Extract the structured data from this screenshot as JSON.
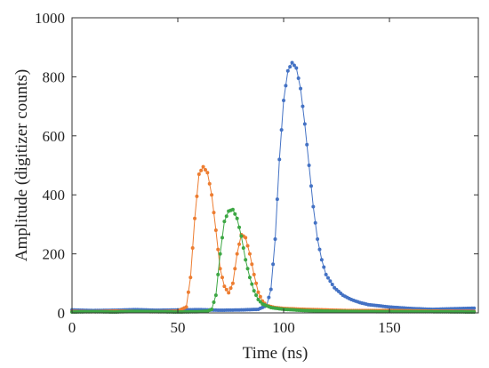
{
  "chart_data": {
    "type": "line",
    "title": "",
    "xlabel": "Time (ns)",
    "ylabel": "Amplitude (digitizer counts)",
    "xlim": [
      0,
      192
    ],
    "ylim": [
      0,
      1000
    ],
    "x_ticks": [
      0,
      50,
      100,
      150
    ],
    "y_ticks": [
      0,
      200,
      400,
      600,
      800,
      1000
    ],
    "x_tick_labels": [
      "0",
      "50",
      "100",
      "150"
    ],
    "y_tick_labels": [
      "0",
      "200",
      "400",
      "600",
      "800",
      "1000"
    ],
    "grid": false,
    "legend": "none",
    "markers": "dots",
    "series": [
      {
        "color": "#4472c4",
        "x": [
          0,
          10,
          20,
          30,
          40,
          50,
          60,
          70,
          80,
          88,
          92,
          94,
          96,
          98,
          100,
          102,
          104,
          106,
          108,
          110,
          112,
          114,
          116,
          118,
          120,
          124,
          128,
          132,
          136,
          140,
          150,
          160,
          170,
          180,
          190
        ],
        "y": [
          10,
          8,
          9,
          11,
          9,
          10,
          11,
          9,
          10,
          12,
          25,
          80,
          250,
          520,
          720,
          820,
          848,
          830,
          760,
          640,
          500,
          360,
          250,
          180,
          130,
          85,
          60,
          45,
          35,
          28,
          20,
          15,
          12,
          14,
          16
        ]
      },
      {
        "color": "#ed7d31",
        "x": [
          0,
          10,
          20,
          30,
          40,
          50,
          54,
          56,
          58,
          60,
          62,
          64,
          66,
          68,
          70,
          72,
          74,
          76,
          78,
          80,
          82,
          84,
          86,
          88,
          90,
          92,
          96,
          100,
          110,
          120,
          130,
          150,
          170,
          190
        ],
        "y": [
          5,
          4,
          6,
          5,
          4,
          6,
          20,
          120,
          320,
          470,
          495,
          475,
          400,
          280,
          150,
          90,
          68,
          100,
          200,
          265,
          255,
          200,
          130,
          70,
          40,
          25,
          18,
          15,
          12,
          10,
          8,
          8,
          6,
          5
        ]
      },
      {
        "color": "#3da744",
        "x": [
          0,
          10,
          20,
          30,
          40,
          50,
          60,
          64,
          66,
          68,
          70,
          72,
          74,
          76,
          78,
          80,
          82,
          84,
          86,
          88,
          90,
          94,
          100,
          110,
          120,
          130,
          150,
          170,
          190
        ],
        "y": [
          3,
          4,
          3,
          5,
          4,
          3,
          4,
          6,
          12,
          60,
          200,
          310,
          345,
          350,
          320,
          260,
          180,
          120,
          75,
          45,
          30,
          18,
          12,
          8,
          6,
          5,
          4,
          4,
          3
        ]
      }
    ]
  }
}
